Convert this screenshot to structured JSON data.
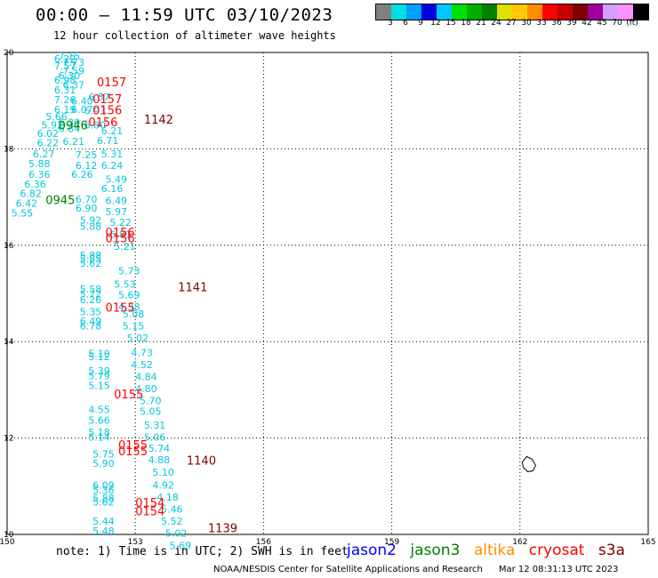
{
  "title": "00:00 – 11:59 UTC 03/10/2023",
  "subtitle": "12 hour collection of altimeter wave heights",
  "colorbar": {
    "colors": [
      "#808080",
      "#00e0e0",
      "#00a0ff",
      "#0000e0",
      "#00c8ff",
      "#00e000",
      "#00b000",
      "#008000",
      "#e0e000",
      "#ffc800",
      "#ff8c00",
      "#ff0000",
      "#c80000",
      "#800000",
      "#a000a0",
      "#d0a0ff",
      "#ff90ff",
      "#000000"
    ],
    "labels": [
      "3",
      "6",
      "9",
      "12",
      "15",
      "18",
      "21",
      "24",
      "27",
      "30",
      "33",
      "36",
      "39",
      "42",
      "45",
      "70",
      "(ft)"
    ]
  },
  "map": {
    "lon_range": [
      150,
      165
    ],
    "lat_range": [
      10,
      20
    ],
    "lon_ticks": [
      "150",
      "153",
      "156",
      "159",
      "162",
      "165"
    ],
    "lat_ticks": [
      "10",
      "12",
      "14",
      "16",
      "18",
      "20"
    ]
  },
  "tracks": {
    "jason3_color": "#008000",
    "cryosat_color": "#ff0000",
    "s3a_color": "#800000",
    "wave_color": "#00c8e0",
    "jason3_times": [
      {
        "lat": 18.4,
        "lon": 151.2,
        "t": "0946"
      },
      {
        "lat": 16.85,
        "lon": 150.9,
        "t": "0945"
      }
    ],
    "cryosat_times": [
      {
        "lat": 19.3,
        "lon": 152.1,
        "t": "0157"
      },
      {
        "lat": 18.95,
        "lon": 152.0,
        "t": "0157"
      },
      {
        "lat": 18.72,
        "lon": 152.0,
        "t": "0156"
      },
      {
        "lat": 18.47,
        "lon": 151.9,
        "t": "0156"
      },
      {
        "lat": 16.18,
        "lon": 152.3,
        "t": "0156"
      },
      {
        "lat": 16.06,
        "lon": 152.3,
        "t": "0156"
      },
      {
        "lat": 14.62,
        "lon": 152.3,
        "t": "0155"
      },
      {
        "lat": 12.82,
        "lon": 152.5,
        "t": "0155"
      },
      {
        "lat": 11.77,
        "lon": 152.6,
        "t": "0155"
      },
      {
        "lat": 11.64,
        "lon": 152.6,
        "t": "0155"
      },
      {
        "lat": 10.57,
        "lon": 153.0,
        "t": "0154"
      },
      {
        "lat": 10.4,
        "lon": 153.0,
        "t": "0154"
      }
    ],
    "s3a_times": [
      {
        "lat": 18.52,
        "lon": 153.2,
        "t": "1142"
      },
      {
        "lat": 15.05,
        "lon": 154.0,
        "t": "1141"
      },
      {
        "lat": 11.45,
        "lon": 154.2,
        "t": "1140"
      },
      {
        "lat": 10.05,
        "lon": 154.7,
        "t": "1139"
      }
    ],
    "jason3_heights": [
      {
        "lat": 19.85,
        "lon": 151.2,
        "v": "7.15"
      },
      {
        "lat": 19.8,
        "lon": 151.1,
        "v": "6.22"
      },
      {
        "lat": 19.72,
        "lon": 151.3,
        "v": "7.73"
      },
      {
        "lat": 19.65,
        "lon": 151.1,
        "v": "7.57"
      },
      {
        "lat": 19.55,
        "lon": 151.3,
        "v": "7.59"
      },
      {
        "lat": 19.45,
        "lon": 151.2,
        "v": "6.30"
      },
      {
        "lat": 19.35,
        "lon": 151.1,
        "v": "6.98"
      },
      {
        "lat": 19.25,
        "lon": 151.3,
        "v": "6.37"
      },
      {
        "lat": 19.15,
        "lon": 151.1,
        "v": "6.31"
      },
      {
        "lat": 18.95,
        "lon": 151.1,
        "v": "7.26"
      },
      {
        "lat": 18.92,
        "lon": 151.5,
        "v": "6.40"
      },
      {
        "lat": 18.75,
        "lon": 151.1,
        "v": "6.19"
      },
      {
        "lat": 18.75,
        "lon": 151.5,
        "v": "6.07"
      },
      {
        "lat": 18.6,
        "lon": 150.9,
        "v": "5.66"
      },
      {
        "lat": 18.48,
        "lon": 151.2,
        "v": "6.30"
      },
      {
        "lat": 18.42,
        "lon": 150.8,
        "v": "5.92"
      },
      {
        "lat": 18.35,
        "lon": 151.2,
        "v": "6.84"
      },
      {
        "lat": 18.25,
        "lon": 150.7,
        "v": "6.02"
      },
      {
        "lat": 18.05,
        "lon": 150.7,
        "v": "6.22"
      },
      {
        "lat": 18.08,
        "lon": 151.3,
        "v": "6.21"
      },
      {
        "lat": 17.82,
        "lon": 150.6,
        "v": "6.27"
      },
      {
        "lat": 17.8,
        "lon": 151.6,
        "v": "7.25"
      },
      {
        "lat": 17.62,
        "lon": 150.5,
        "v": "5.88"
      },
      {
        "lat": 17.58,
        "lon": 151.6,
        "v": "6.12"
      },
      {
        "lat": 17.4,
        "lon": 150.5,
        "v": "6.36"
      },
      {
        "lat": 17.4,
        "lon": 151.5,
        "v": "6.26"
      },
      {
        "lat": 17.2,
        "lon": 150.4,
        "v": "6.36"
      },
      {
        "lat": 17.0,
        "lon": 150.3,
        "v": "6.82"
      },
      {
        "lat": 16.8,
        "lon": 150.2,
        "v": "6.42"
      },
      {
        "lat": 16.6,
        "lon": 150.1,
        "v": "5.55"
      },
      {
        "lat": 16.88,
        "lon": 151.6,
        "v": "6.70"
      },
      {
        "lat": 16.7,
        "lon": 151.6,
        "v": "6.90"
      },
      {
        "lat": 16.45,
        "lon": 151.7,
        "v": "5.92"
      },
      {
        "lat": 16.32,
        "lon": 151.7,
        "v": "5.88"
      },
      {
        "lat": 15.72,
        "lon": 151.7,
        "v": "5.88"
      },
      {
        "lat": 15.65,
        "lon": 151.7,
        "v": "5.85"
      },
      {
        "lat": 15.55,
        "lon": 151.7,
        "v": "5.62"
      },
      {
        "lat": 15.02,
        "lon": 151.7,
        "v": "5.58"
      },
      {
        "lat": 14.92,
        "lon": 151.7,
        "v": "5.72"
      },
      {
        "lat": 14.8,
        "lon": 151.7,
        "v": "6.26"
      },
      {
        "lat": 14.55,
        "lon": 151.7,
        "v": "5.35"
      },
      {
        "lat": 14.35,
        "lon": 151.7,
        "v": "6.49"
      },
      {
        "lat": 14.25,
        "lon": 151.7,
        "v": "6.78"
      },
      {
        "lat": 13.68,
        "lon": 151.9,
        "v": "5.10"
      },
      {
        "lat": 13.62,
        "lon": 151.9,
        "v": "5.12"
      },
      {
        "lat": 13.32,
        "lon": 151.9,
        "v": "5.39"
      },
      {
        "lat": 13.22,
        "lon": 151.9,
        "v": "5.79"
      },
      {
        "lat": 13.02,
        "lon": 151.9,
        "v": "5.15"
      },
      {
        "lat": 12.52,
        "lon": 151.9,
        "v": "4.55"
      },
      {
        "lat": 12.3,
        "lon": 151.9,
        "v": "5.66"
      },
      {
        "lat": 12.05,
        "lon": 151.9,
        "v": "5.18"
      },
      {
        "lat": 11.95,
        "lon": 151.9,
        "v": "5.14"
      },
      {
        "lat": 11.6,
        "lon": 152.0,
        "v": "5.75"
      },
      {
        "lat": 11.4,
        "lon": 152.0,
        "v": "5.90"
      },
      {
        "lat": 10.95,
        "lon": 152.0,
        "v": "6.09"
      },
      {
        "lat": 10.85,
        "lon": 152.0,
        "v": "5.36"
      },
      {
        "lat": 10.68,
        "lon": 152.0,
        "v": "5.88"
      },
      {
        "lat": 10.6,
        "lon": 152.0,
        "v": "5.62"
      },
      {
        "lat": 10.2,
        "lon": 152.0,
        "v": "5.44"
      },
      {
        "lat": 10.0,
        "lon": 152.0,
        "v": "5.48"
      }
    ],
    "cryosat_heights": [
      {
        "lat": 19.0,
        "lon": 151.9,
        "v": "6.57"
      },
      {
        "lat": 18.72,
        "lon": 151.8,
        "v": "6.93"
      },
      {
        "lat": 18.42,
        "lon": 151.8,
        "v": "6.80"
      },
      {
        "lat": 18.3,
        "lon": 152.2,
        "v": "6.21"
      },
      {
        "lat": 18.1,
        "lon": 152.1,
        "v": "6.71"
      },
      {
        "lat": 17.82,
        "lon": 152.2,
        "v": "5.31"
      },
      {
        "lat": 17.58,
        "lon": 152.2,
        "v": "6.24"
      },
      {
        "lat": 17.3,
        "lon": 152.3,
        "v": "5.49"
      },
      {
        "lat": 17.1,
        "lon": 152.2,
        "v": "6.16"
      },
      {
        "lat": 16.85,
        "lon": 152.3,
        "v": "6.49"
      },
      {
        "lat": 16.62,
        "lon": 152.3,
        "v": "5.97"
      },
      {
        "lat": 16.4,
        "lon": 152.4,
        "v": "5.22"
      },
      {
        "lat": 16.15,
        "lon": 152.4,
        "v": "6.81"
      },
      {
        "lat": 15.9,
        "lon": 152.5,
        "v": "5.21"
      },
      {
        "lat": 15.4,
        "lon": 152.6,
        "v": "5.73"
      },
      {
        "lat": 15.12,
        "lon": 152.5,
        "v": "5.53"
      },
      {
        "lat": 14.9,
        "lon": 152.6,
        "v": "5.69"
      },
      {
        "lat": 14.65,
        "lon": 152.6,
        "v": "4.38"
      },
      {
        "lat": 14.5,
        "lon": 152.7,
        "v": "5.08"
      },
      {
        "lat": 14.25,
        "lon": 152.7,
        "v": "5.15"
      },
      {
        "lat": 14.0,
        "lon": 152.8,
        "v": "5.02"
      },
      {
        "lat": 13.7,
        "lon": 152.9,
        "v": "4.73"
      },
      {
        "lat": 13.45,
        "lon": 152.9,
        "v": "4.52"
      },
      {
        "lat": 13.2,
        "lon": 153.0,
        "v": "4.84"
      },
      {
        "lat": 12.95,
        "lon": 153.0,
        "v": "4.80"
      },
      {
        "lat": 12.7,
        "lon": 153.1,
        "v": "5.70"
      },
      {
        "lat": 12.48,
        "lon": 153.1,
        "v": "5.05"
      },
      {
        "lat": 12.2,
        "lon": 153.2,
        "v": "5.31"
      },
      {
        "lat": 11.95,
        "lon": 153.2,
        "v": "5.06"
      },
      {
        "lat": 11.72,
        "lon": 153.3,
        "v": "5.74"
      },
      {
        "lat": 11.48,
        "lon": 153.3,
        "v": "4.88"
      },
      {
        "lat": 11.22,
        "lon": 153.4,
        "v": "5.10"
      },
      {
        "lat": 10.95,
        "lon": 153.4,
        "v": "4.92"
      },
      {
        "lat": 10.7,
        "lon": 153.5,
        "v": "4.18"
      },
      {
        "lat": 10.45,
        "lon": 153.6,
        "v": "5.46"
      },
      {
        "lat": 10.2,
        "lon": 153.6,
        "v": "5.52"
      },
      {
        "lat": 9.95,
        "lon": 153.7,
        "v": "5.02"
      },
      {
        "lat": 9.7,
        "lon": 153.8,
        "v": "5.69"
      }
    ]
  },
  "note": "note: 1) Time is in UTC; 2) SWH is in feet",
  "legend": {
    "jason2": "jason2",
    "jason3": "jason3",
    "altika": "altika",
    "cryosat": "cryosat",
    "s3a": "s3a",
    "colors": {
      "jason2": "#0000ff",
      "jason3": "#008000",
      "altika": "#ff8c00",
      "cryosat": "#ff0000",
      "s3a": "#800000"
    }
  },
  "footer": {
    "credit": "NOAA/NESDIS Center for Satellite Applications and Research",
    "timestamp": "Mar 12 08:31:13 UTC 2023"
  }
}
